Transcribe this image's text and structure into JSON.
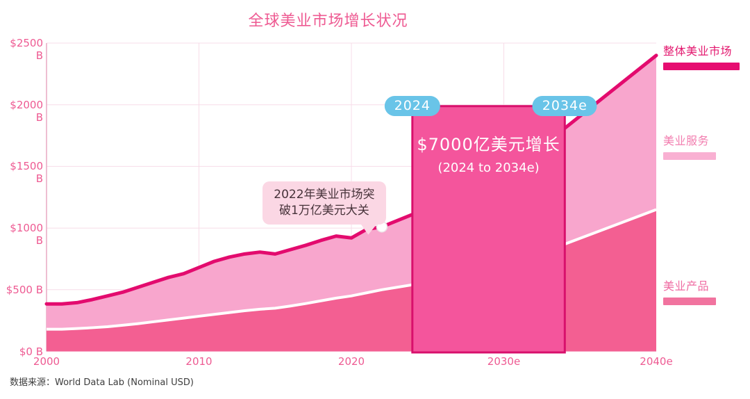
{
  "title": {
    "text": "全球美业市场增长状况",
    "color": "#ee5a92"
  },
  "source": {
    "text": "数据来源：World Data Lab (Nominal USD)"
  },
  "annotations": {
    "badge_start": "2024",
    "badge_end": "2034e",
    "badge_color": "#69c4e8",
    "growth_line1": "$7000亿美元增长",
    "growth_line2": "(2024 to 2034e)",
    "highlight_fill": "#f4559c",
    "highlight_border": "#d8106c",
    "callout_line1": "2022年美业市场突",
    "callout_line2": "破1万亿美元大关",
    "callout_bg": "#fbd7e4"
  },
  "legend": {
    "items": [
      {
        "label": "整体美业市场",
        "text_color": "#e3186f",
        "swatch_color": "#e60d70"
      },
      {
        "label": "美业服务",
        "text_color": "#f27daf",
        "swatch_color": "#f9b0d2"
      },
      {
        "label": "美业产品",
        "text_color": "#ef6ba2",
        "swatch_color": "#f1739f"
      }
    ]
  },
  "chart_data": {
    "type": "area",
    "title": "全球美业市场增长状况",
    "unit": "USD billions (Nominal)",
    "xlim": [
      2000,
      2040
    ],
    "ylim": [
      0,
      2500
    ],
    "x_tick_years": [
      2000,
      2010,
      2020,
      2030,
      2040
    ],
    "x_tick_labels": [
      "2000",
      "2010",
      "2020",
      "2030e",
      "2040e"
    ],
    "y_tick_values": [
      0,
      500,
      1000,
      1500,
      2000,
      2500
    ],
    "y_tick_labels": [
      "$0 B",
      "$500 B",
      "$1000 B",
      "$1500 B",
      "$2000 B",
      "$2500 B"
    ],
    "grid": true,
    "axis_color": "#e9a9c4",
    "grid_color": "#f7dce8",
    "x": [
      2000,
      2001,
      2002,
      2003,
      2004,
      2005,
      2006,
      2007,
      2008,
      2009,
      2010,
      2011,
      2012,
      2013,
      2014,
      2015,
      2016,
      2017,
      2018,
      2019,
      2020,
      2021,
      2022,
      2023,
      2024,
      2034,
      2040
    ],
    "series": [
      {
        "name": "整体美业市场",
        "draw": "line",
        "color": "#e30b6e",
        "values": [
          385,
          385,
          395,
          420,
          450,
          480,
          520,
          560,
          600,
          630,
          680,
          730,
          765,
          790,
          805,
          790,
          825,
          860,
          900,
          935,
          920,
          990,
          1010,
          1060,
          1110,
          1810,
          2400
        ]
      },
      {
        "name": "美业服务",
        "draw": "area-upper",
        "color": "#f8a6cd",
        "values": [
          205,
          205,
          210,
          228,
          250,
          268,
          295,
          320,
          345,
          360,
          395,
          430,
          450,
          460,
          463,
          440,
          457,
          472,
          490,
          503,
          470,
          515,
          510,
          540,
          570,
          940,
          1250
        ]
      },
      {
        "name": "美业产品",
        "draw": "area-lower",
        "color": "#f35f92",
        "separator_color": "#ffffff",
        "values": [
          180,
          180,
          185,
          192,
          200,
          212,
          225,
          240,
          255,
          270,
          285,
          300,
          315,
          330,
          342,
          350,
          368,
          388,
          410,
          432,
          450,
          475,
          500,
          520,
          540,
          870,
          1150
        ]
      }
    ],
    "marker": {
      "year": 2022,
      "value": 1010,
      "note": "2022年美业市场突破1万亿美元大关"
    },
    "highlight": {
      "from_year": 2024,
      "to_year": 2034,
      "growth_usd_billions": 700
    }
  }
}
